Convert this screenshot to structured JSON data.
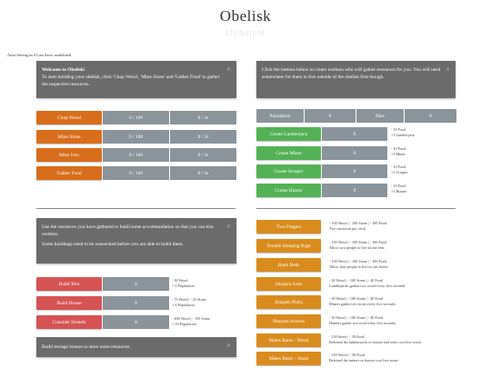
{
  "header": {
    "title": "Obelisk",
    "subtitle": "alphatest"
  },
  "autosave": "Auto-Saving in 4 Last Save: undefined",
  "colors": {
    "orange": "#d86e1c",
    "green": "#53b255",
    "red": "#d65353",
    "amber": "#d98c1d",
    "panel": "#6b6b6b",
    "cell": "#8a949a"
  },
  "welcome": {
    "title": "Welcome to Obelisk!",
    "body": "To start building your obelisk, click 'Chop Wood', 'Mine Stone' and 'Gather Food' to gather the respective resources.",
    "close": "×"
  },
  "resources": [
    {
      "label": "Chop Wood",
      "amount": "0 / 100",
      "rate": "0 / 3s"
    },
    {
      "label": "Mine Stone",
      "amount": "0 / 100",
      "rate": "0 / 3s"
    },
    {
      "label": "Mine Iron",
      "amount": "0 / 100",
      "rate": "0 / 3s"
    },
    {
      "label": "Gather Food",
      "amount": "0 / 100",
      "rate": "0 / 3s"
    }
  ],
  "workers_info": {
    "body": "Click the buttons below to create workers who will gather resources for you. You will need somewhere for them to live outside of the obelisk first though.",
    "close": "×"
  },
  "population": {
    "label": "Population",
    "value": "0",
    "max_label": "Max",
    "max_value": "0"
  },
  "workers": [
    {
      "label": "Create Lumberjack",
      "count": "0",
      "cost": "- 10 Food",
      "gain": "+1 Lumberjack"
    },
    {
      "label": "Create Miner",
      "count": "0",
      "cost": "- 10 Food",
      "gain": "+1 Miner"
    },
    {
      "label": "Create Scraper",
      "count": "0",
      "cost": "- 10 Food",
      "gain": "+1 Scraper"
    },
    {
      "label": "Create Hunter",
      "count": "0",
      "cost": "- 10 Food",
      "gain": "+1 Hunter"
    }
  ],
  "build_info": {
    "p1": "Use the resources you have gathered to build some accommodation so that you can hire workers.",
    "p2": "Some buildings need to be researched before you are able to build them.",
    "close": "×"
  },
  "buildings": [
    {
      "label": "Build Tent",
      "count": "0",
      "cost": "- 30 Wood",
      "gain": "+ 1 Population"
    },
    {
      "label": "Build House",
      "count": "0",
      "cost": "- 75 Wood | - 25 Stone",
      "gain": "+ 4 Population"
    },
    {
      "label": "Consider Hostels",
      "count": "0",
      "cost": "- 400 Wood | - 150 Stone",
      "gain": "+ 10 Population"
    }
  ],
  "storage_info": {
    "body": "Build storage houses to store more resources.",
    "close": "×"
  },
  "research": [
    {
      "label": "Two Fingers",
      "cost": "- 100 Wood | - 100 Stone | - 100 Food",
      "desc": "Two resources per click."
    },
    {
      "label": "Double Sleeping Bags",
      "cost": "- 100 Wood | - 100 Stone | - 100 Food",
      "desc": "Allow two people to live in one tent."
    },
    {
      "label": "Bunk Beds",
      "cost": "- 100 Wood | - 100 Stone | - 100 Food",
      "desc": "Allow four people to live in one house."
    },
    {
      "label": "Sharpen Axes",
      "cost": "- 30 Wood | - 100 Stone | - 40 Food",
      "desc": "Lumberjacks gather two wood every five seconds."
    },
    {
      "label": "Sharpen Picks",
      "cost": "- 30 Wood | - 100 Stone | - 40 Food",
      "desc": "Miners gather two stone every five seconds."
    },
    {
      "label": "Sharpen Arrows",
      "cost": "- 30 Wood | - 100 Stone | - 40 Food",
      "desc": "Hunters gather two food every five seconds."
    },
    {
      "label": "Mates Rates - Wood",
      "cost": "- 150 Stone | - 30 Food",
      "desc": "Befriend the lumberjacks to houses and tents cost less wood."
    },
    {
      "label": "Mates Rates - Stone",
      "cost": "- 150 Wood | - 30 Food",
      "desc": "Befriend the miners so houses cost less stone."
    }
  ]
}
